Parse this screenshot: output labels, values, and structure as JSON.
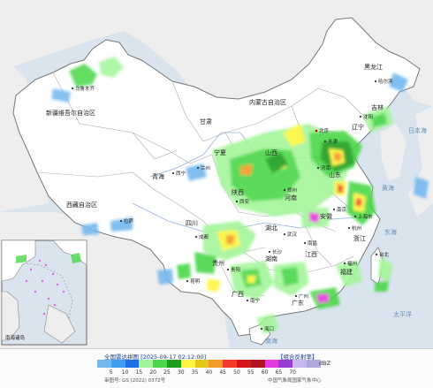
{
  "colors": {
    "sea": "#d9e4ee",
    "land": "#eeeeee",
    "china": "#ffffff",
    "border": "#777777",
    "province": "#aaaaaa",
    "river": "#8fb2d9"
  },
  "regions": {
    "xinjiang": "新疆维吾尔自治区",
    "xizang": "西藏自治区",
    "qinghai": "青海",
    "gansu": "甘肃",
    "neimenggu": "内蒙古自治区",
    "heilongjiang": "黑龙江",
    "jilin": "吉林",
    "ningxia": "宁夏",
    "shaanxi": "陕西",
    "shanxi": "山西",
    "henan": "河南",
    "hubei": "湖北",
    "hunan": "湖南",
    "sichuan": "四川",
    "guizhou": "贵州",
    "guangxi": "广西",
    "guangdong": "广东",
    "jiangxi": "江西",
    "fujian": "福建",
    "zhejiang": "浙江",
    "anhui": "安徽",
    "shandong": "山东",
    "liaoning": "辽宁"
  },
  "cities": {
    "wulumuqi": "乌鲁木齐",
    "lasa": "拉萨",
    "xining": "西宁",
    "lanzhou": "兰州",
    "haerbin": "哈尔滨",
    "shenyang": "沈阳",
    "beijing": "北京",
    "tianjin": "天津",
    "jinan": "济南",
    "zhengzhou": "郑州",
    "xian": "西安",
    "chengdu": "成都",
    "wuhan": "武汉",
    "nanjing": "南京",
    "shanghai": "上海市",
    "hangzhou": "杭州",
    "changsha": "长沙",
    "nanchang": "南昌",
    "guiyang": "贵阳",
    "kunming": "昆明",
    "nanning": "南宁",
    "guangzhou": "广州",
    "fuzhou": "福州",
    "haikou": "海口",
    "taibei": "台北"
  },
  "seas": {
    "japan_sea": "日本海",
    "yellow_sea": "黄海",
    "east_sea": "东海",
    "pacific": "太平洋",
    "south_sea": "南海"
  },
  "inset": {
    "label": "南海诸岛"
  },
  "legend": {
    "title": "全国雷达拼图 [2025-09-17 02:12:00]",
    "product": "【组合反射率】",
    "unit": "dBZ",
    "review_no": "审图号: GS (2022) 0372号",
    "credit": "中国气象局国家气象中心",
    "ticks": [
      "5",
      "10",
      "15",
      "20",
      "25",
      "30",
      "35",
      "40",
      "45",
      "50",
      "55",
      "60",
      "65",
      "70"
    ],
    "scale_colors": [
      "#74b8ef",
      "#3da0f0",
      "#1e6fe8",
      "#a3f59b",
      "#4cd84a",
      "#1f9e1e",
      "#fdf53f",
      "#e8c51a",
      "#f39a26",
      "#f33b2a",
      "#d81518",
      "#b2141f",
      "#e63bdc",
      "#9a3dd6",
      "#c8b7ee",
      "#b0a8d8"
    ]
  }
}
